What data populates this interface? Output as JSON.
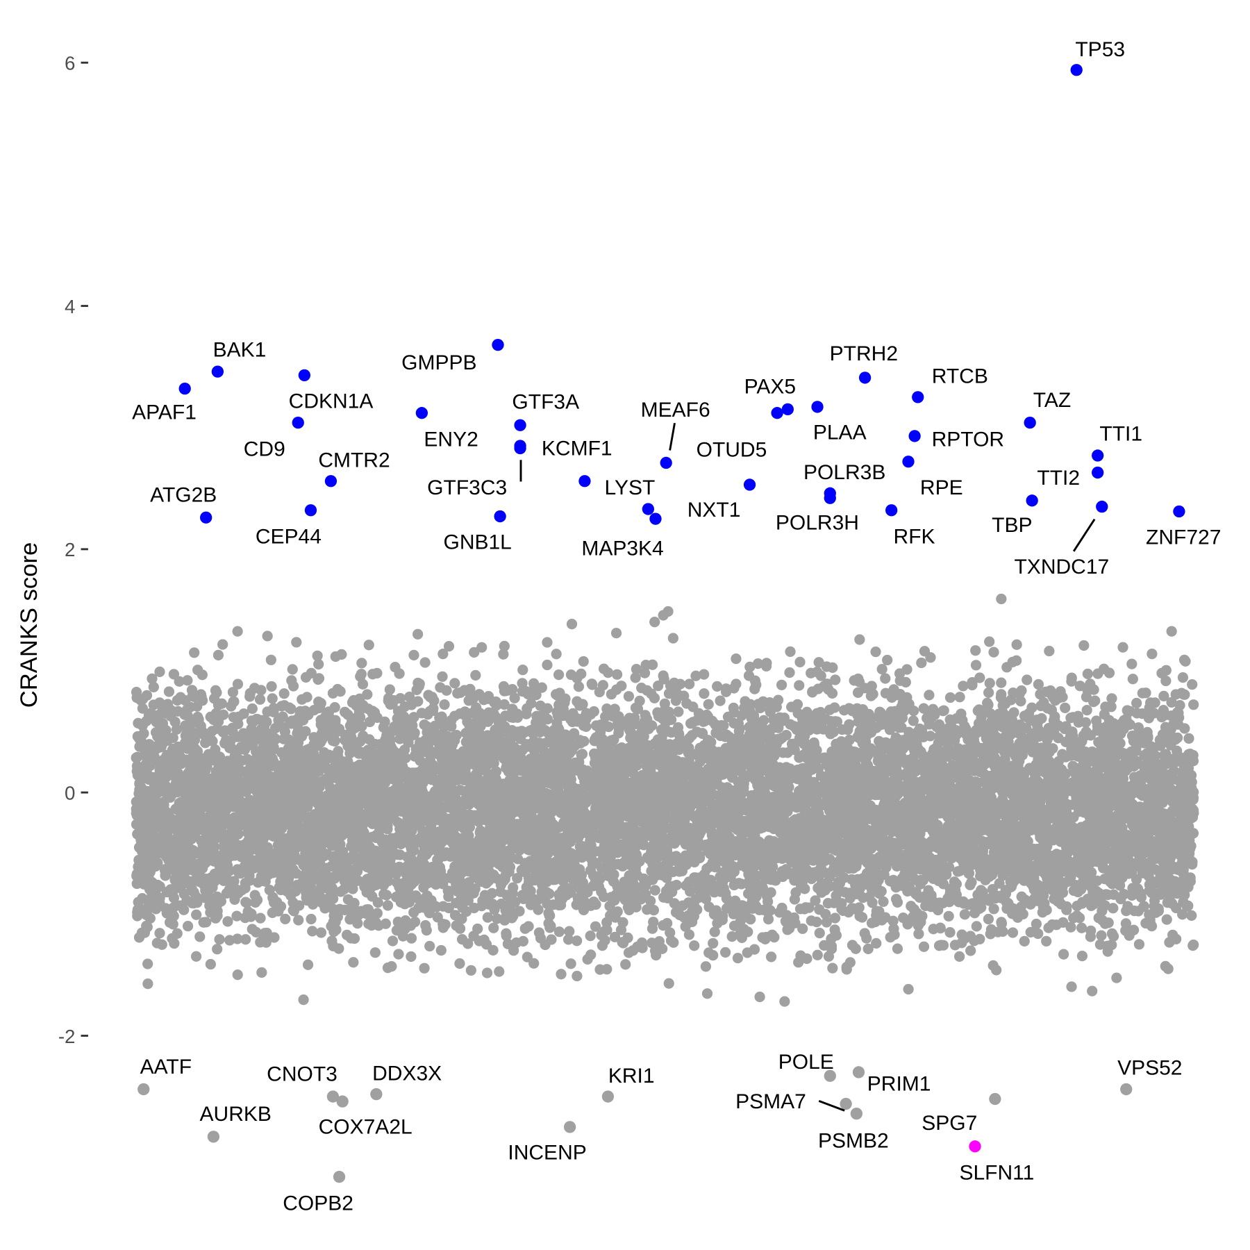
{
  "chart_data": {
    "type": "scatter",
    "title": "",
    "xlabel": "",
    "ylabel": "CRANKS score",
    "ylim": [
      -3.3,
      6.1
    ],
    "yticks": [
      "-2",
      "0",
      "2",
      "4",
      "6"
    ],
    "grid": false,
    "legend": "none",
    "x_axis_shown": false,
    "colors": {
      "background": "#a0a0a0",
      "positive_hit": "#0000ff",
      "negative_hit": "#a0a0a0",
      "highlight": "#ff00ff"
    },
    "background_points": {
      "color": "#a0a0a0",
      "y_range_approx": [
        -2.0,
        2.2
      ],
      "center_approx": -0.1
    },
    "labeled_points": [
      {
        "label": "TP53",
        "x": 889,
        "y": 5.94,
        "group": "positive_hit"
      },
      {
        "label": "GMPPB",
        "x": 342,
        "y": 3.68,
        "group": "positive_hit"
      },
      {
        "label": "BAK1",
        "x": 77,
        "y": 3.46,
        "group": "positive_hit"
      },
      {
        "label": "CDKN1A",
        "x": 159,
        "y": 3.43,
        "group": "positive_hit"
      },
      {
        "label": "PTRH2",
        "x": 689,
        "y": 3.41,
        "group": "positive_hit"
      },
      {
        "label": "APAF1",
        "x": 46,
        "y": 3.32,
        "group": "positive_hit"
      },
      {
        "label": "RTCB",
        "x": 739,
        "y": 3.25,
        "group": "positive_hit"
      },
      {
        "label": "PLAA",
        "x": 644,
        "y": 3.17,
        "group": "positive_hit"
      },
      {
        "label": "PAX5",
        "x": 616,
        "y": 3.15,
        "group": "positive_hit"
      },
      {
        "label": "",
        "x": 606,
        "y": 3.12,
        "group": "positive_hit"
      },
      {
        "label": "ENY2",
        "x": 270,
        "y": 3.12,
        "group": "positive_hit"
      },
      {
        "label": "CD9",
        "x": 153,
        "y": 3.04,
        "group": "positive_hit"
      },
      {
        "label": "TAZ",
        "x": 845,
        "y": 3.04,
        "group": "positive_hit"
      },
      {
        "label": "GTF3A",
        "x": 363,
        "y": 3.02,
        "group": "positive_hit"
      },
      {
        "label": "RPTOR",
        "x": 736,
        "y": 2.93,
        "group": "positive_hit"
      },
      {
        "label": "KCMF1",
        "x": 363,
        "y": 2.85,
        "group": "positive_hit"
      },
      {
        "label": "GTF3C3",
        "x": 363,
        "y": 2.83,
        "group": "positive_hit"
      },
      {
        "label": "TTI1",
        "x": 909,
        "y": 2.77,
        "group": "positive_hit"
      },
      {
        "label": "RPE",
        "x": 730,
        "y": 2.72,
        "group": "positive_hit"
      },
      {
        "label": "MEAF6",
        "x": 501,
        "y": 2.71,
        "group": "positive_hit"
      },
      {
        "label": "TTI2",
        "x": 909,
        "y": 2.63,
        "group": "positive_hit"
      },
      {
        "label": "CMTR2",
        "x": 184,
        "y": 2.56,
        "group": "positive_hit"
      },
      {
        "label": "LYST",
        "x": 424,
        "y": 2.56,
        "group": "positive_hit"
      },
      {
        "label": "OTUD5",
        "x": 580,
        "y": 2.53,
        "group": "positive_hit"
      },
      {
        "label": "POLR3B",
        "x": 656,
        "y": 2.46,
        "group": "positive_hit"
      },
      {
        "label": "POLR3H",
        "x": 656,
        "y": 2.42,
        "group": "positive_hit"
      },
      {
        "label": "TBP",
        "x": 847,
        "y": 2.4,
        "group": "positive_hit"
      },
      {
        "label": "TXNDC17",
        "x": 913,
        "y": 2.35,
        "group": "positive_hit"
      },
      {
        "label": "NXT1",
        "x": 484,
        "y": 2.33,
        "group": "positive_hit"
      },
      {
        "label": "CEP44",
        "x": 165,
        "y": 2.32,
        "group": "positive_hit"
      },
      {
        "label": "RFK",
        "x": 714,
        "y": 2.32,
        "group": "positive_hit"
      },
      {
        "label": "ZNF727",
        "x": 986,
        "y": 2.31,
        "group": "positive_hit"
      },
      {
        "label": "GNB1L",
        "x": 344,
        "y": 2.27,
        "group": "positive_hit"
      },
      {
        "label": "ATG2B",
        "x": 66,
        "y": 2.26,
        "group": "positive_hit"
      },
      {
        "label": "MAP3K4",
        "x": 491,
        "y": 2.25,
        "group": "positive_hit"
      },
      {
        "label": "PRIM1",
        "x": 683,
        "y": -2.3,
        "group": "negative_hit"
      },
      {
        "label": "POLE",
        "x": 656,
        "y": -2.33,
        "group": "negative_hit"
      },
      {
        "label": "AATF",
        "x": 7,
        "y": -2.44,
        "group": "negative_hit"
      },
      {
        "label": "VPS52",
        "x": 936,
        "y": -2.44,
        "group": "negative_hit"
      },
      {
        "label": "DDX3X",
        "x": 227,
        "y": -2.48,
        "group": "negative_hit"
      },
      {
        "label": "CNOT3",
        "x": 186,
        "y": -2.5,
        "group": "negative_hit"
      },
      {
        "label": "KRI1",
        "x": 446,
        "y": -2.5,
        "group": "negative_hit"
      },
      {
        "label": "SPG7",
        "x": 812,
        "y": -2.52,
        "group": "negative_hit"
      },
      {
        "label": "COX7A2L",
        "x": 195,
        "y": -2.54,
        "group": "negative_hit"
      },
      {
        "label": "PSMA7",
        "x": 671,
        "y": -2.56,
        "group": "negative_hit"
      },
      {
        "label": "PSMB2",
        "x": 681,
        "y": -2.64,
        "group": "negative_hit"
      },
      {
        "label": "INCENP",
        "x": 410,
        "y": -2.75,
        "group": "negative_hit"
      },
      {
        "label": "AURKB",
        "x": 73,
        "y": -2.83,
        "group": "negative_hit"
      },
      {
        "label": "SLFN11",
        "x": 793,
        "y": -2.91,
        "group": "highlight"
      },
      {
        "label": "COPB2",
        "x": 192,
        "y": -3.16,
        "group": "negative_hit"
      }
    ]
  }
}
